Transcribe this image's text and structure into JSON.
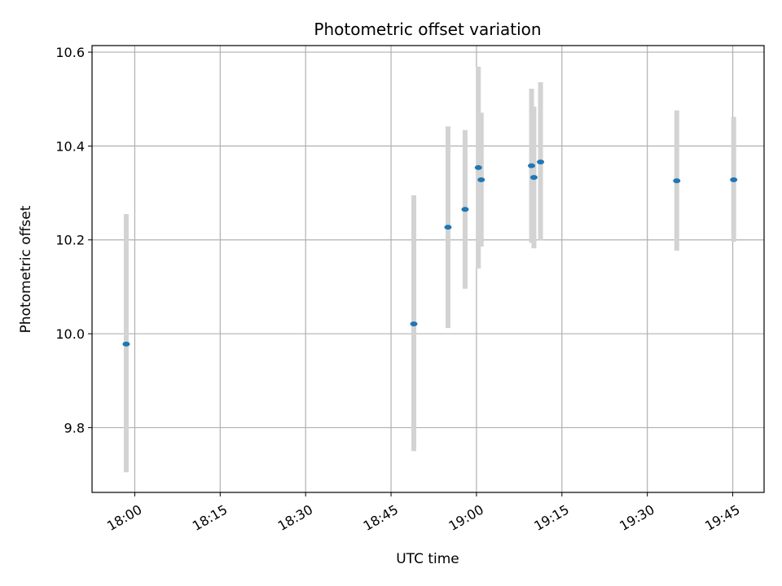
{
  "chart_data": {
    "type": "scatter",
    "title": "Photometric offset variation",
    "xlabel": "UTC time",
    "ylabel": "Photometric offset",
    "x_tick_labels": [
      "18:00",
      "18:15",
      "18:30",
      "18:45",
      "19:00",
      "19:15",
      "19:30",
      "19:45"
    ],
    "y_tick_labels": [
      "9.8",
      "10.0",
      "10.2",
      "10.4",
      "10.6"
    ],
    "y_ticks": [
      9.8,
      10.0,
      10.2,
      10.4,
      10.6
    ],
    "x_ticks": [
      "18:00",
      "18:15",
      "18:30",
      "18:45",
      "19:00",
      "19:15",
      "19:30",
      "19:45"
    ],
    "xlim": [
      "17:52:30",
      "19:50:30"
    ],
    "ylim": [
      9.662,
      10.614
    ],
    "grid": true,
    "marker_color": "#1f77b4",
    "errorbar_color": "#d3d3d3",
    "points": [
      {
        "x": "17:58:30",
        "y": 9.978,
        "ylow": 9.705,
        "yhigh": 10.255
      },
      {
        "x": "18:49:00",
        "y": 10.021,
        "ylow": 9.75,
        "yhigh": 10.295
      },
      {
        "x": "18:55:00",
        "y": 10.227,
        "ylow": 10.012,
        "yhigh": 10.442
      },
      {
        "x": "18:58:00",
        "y": 10.265,
        "ylow": 10.096,
        "yhigh": 10.434
      },
      {
        "x": "19:00:20",
        "y": 10.354,
        "ylow": 10.139,
        "yhigh": 10.569
      },
      {
        "x": "19:00:50",
        "y": 10.328,
        "ylow": 10.186,
        "yhigh": 10.471
      },
      {
        "x": "19:09:40",
        "y": 10.358,
        "ylow": 10.194,
        "yhigh": 10.522
      },
      {
        "x": "19:10:05",
        "y": 10.333,
        "ylow": 10.182,
        "yhigh": 10.484
      },
      {
        "x": "19:11:15",
        "y": 10.366,
        "ylow": 10.199,
        "yhigh": 10.536
      },
      {
        "x": "19:35:10",
        "y": 10.326,
        "ylow": 10.177,
        "yhigh": 10.476
      },
      {
        "x": "19:45:10",
        "y": 10.328,
        "ylow": 10.196,
        "yhigh": 10.462
      }
    ]
  }
}
